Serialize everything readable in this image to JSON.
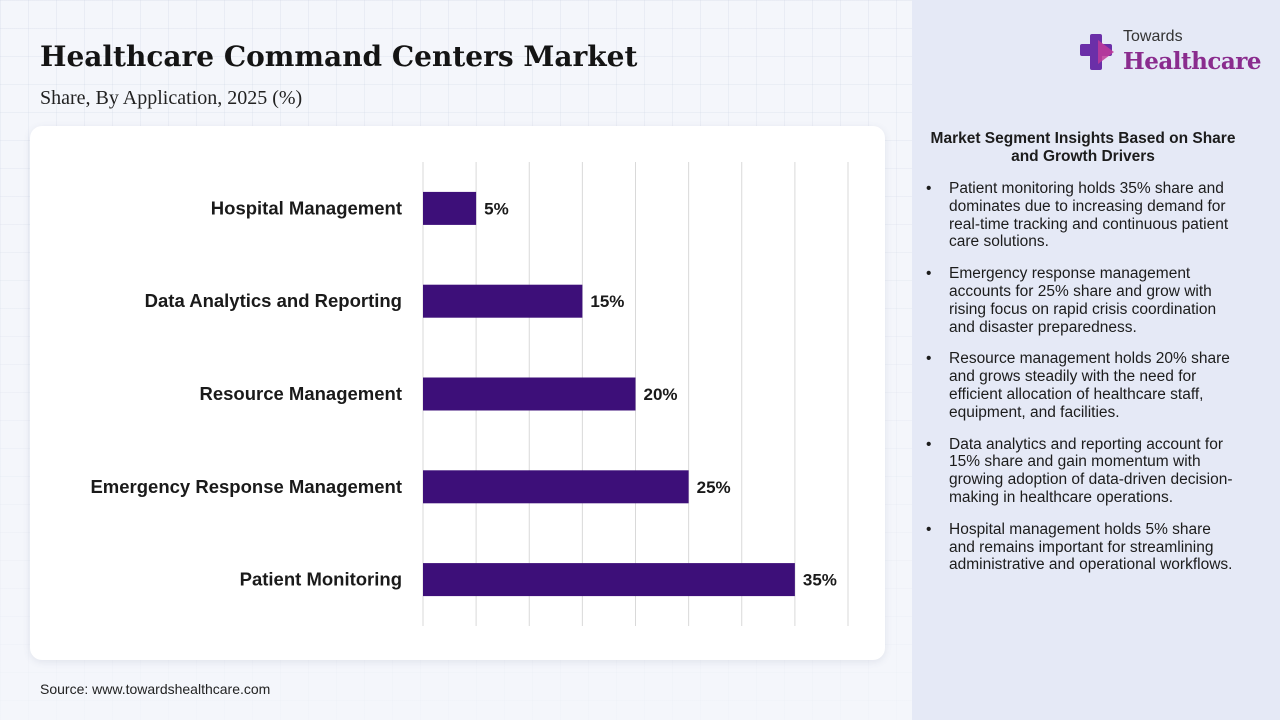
{
  "header": {
    "title": "Healthcare Command Centers Market",
    "subtitle": "Share, By Application, 2025 (%)"
  },
  "logo": {
    "top_text": "Towards",
    "main_text": "Healthcare",
    "icon": "cross-logo-icon",
    "colors": {
      "cross_purple": "#6b2fa8",
      "cross_magenta": "#c0399a",
      "text": "#8a2c8e"
    }
  },
  "chart_data": {
    "type": "bar",
    "orientation": "horizontal",
    "categories": [
      "Hospital Management",
      "Data Analytics and Reporting",
      "Resource Management",
      "Emergency Response Management",
      "Patient Monitoring"
    ],
    "values": [
      5,
      15,
      20,
      25,
      35
    ],
    "value_labels": [
      "5%",
      "15%",
      "20%",
      "25%",
      "35%"
    ],
    "xlim": [
      0,
      40
    ],
    "grid": true,
    "bar_color": "#3d0f79",
    "title": "",
    "xlabel": "",
    "ylabel": ""
  },
  "insights": {
    "title": "Market Segment Insights Based on Share and Growth Drivers",
    "items": [
      "Patient monitoring holds 35% share and dominates due to increasing demand for real-time tracking and continuous patient care solutions.",
      "Emergency response management accounts for 25% share and grow with rising focus on rapid crisis coordination and disaster preparedness.",
      "Resource management holds 20% share and grows steadily with the need for efficient allocation of healthcare staff, equipment, and facilities.",
      "Data analytics and reporting account for 15% share and gain momentum with growing adoption of data-driven decision-making in healthcare operations.",
      "Hospital management holds 5% share and remains important for streamlining administrative and operational workflows."
    ]
  },
  "footer": {
    "source": "Source: www.towardshealthcare.com"
  }
}
